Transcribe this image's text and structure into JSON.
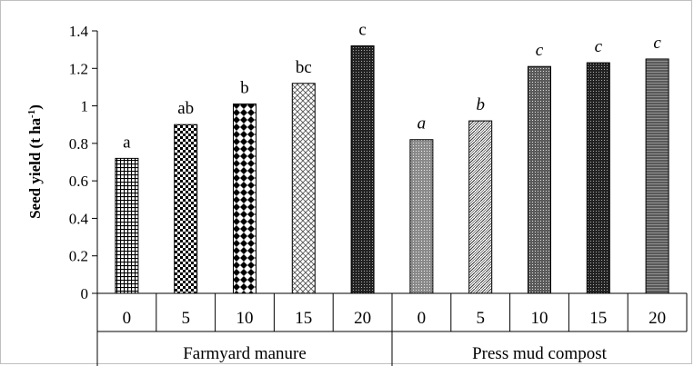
{
  "chart_data": {
    "type": "bar",
    "ylabel": "Seed yield (t ha",
    "ylabel_sup": "-1",
    "ylabel_close": ")",
    "ylim": [
      0,
      1.4
    ],
    "yticks": [
      "0",
      "0.2",
      "0.4",
      "0.6",
      "0.8",
      "1",
      "1.2",
      "1.4"
    ],
    "groups": [
      {
        "name": "Farmyard manure",
        "italic_significance": false,
        "categories": [
          "0",
          "5",
          "10",
          "15",
          "20"
        ],
        "values": [
          0.72,
          0.9,
          1.01,
          1.12,
          1.32
        ],
        "significance": [
          "a",
          "ab",
          "b",
          "bc",
          "c"
        ],
        "patterns": [
          "grid",
          "checker",
          "diamond",
          "cross",
          "dark-dots"
        ]
      },
      {
        "name": "Press mud compost",
        "italic_significance": true,
        "categories": [
          "0",
          "5",
          "10",
          "15",
          "20"
        ],
        "values": [
          0.82,
          0.92,
          1.21,
          1.23,
          1.25
        ],
        "significance": [
          "a",
          "b",
          "c",
          "c",
          "c"
        ],
        "patterns": [
          "fine-dots",
          "zigzag",
          "dense-dots",
          "dark-dots",
          "hlines"
        ]
      }
    ],
    "grid": false,
    "legend": "none"
  }
}
